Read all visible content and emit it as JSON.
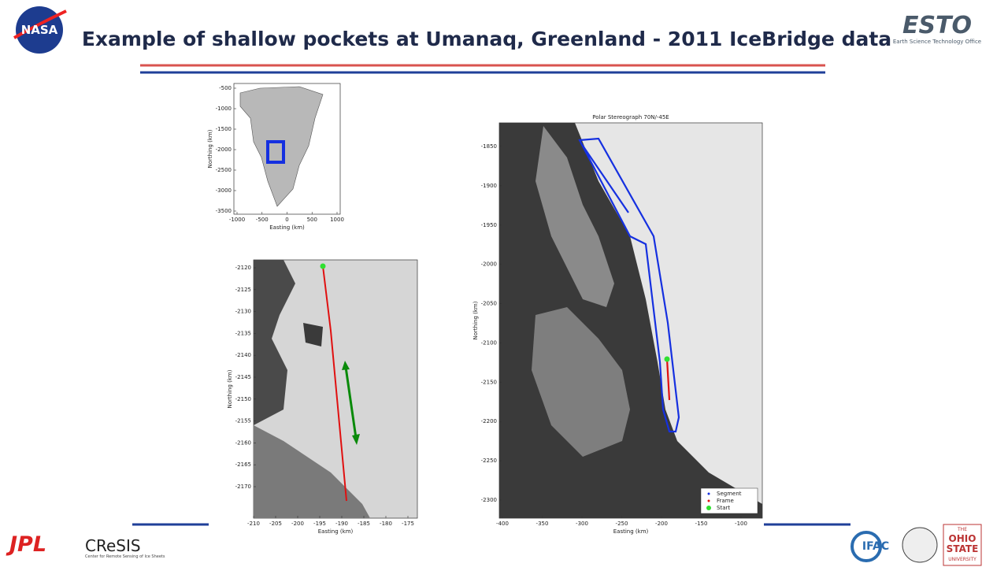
{
  "header": {
    "title": "Example of shallow pockets at Umanaq, Greenland - 2011 IceBridge data"
  },
  "logos": {
    "nasa": "NASA",
    "esto": "ESTO",
    "esto_sub": "Earth Science Technology Office",
    "jpl": "JPL",
    "cresis": "CReSIS",
    "cresis_sub": "Center for Remote Sensing of Ice Sheets",
    "ifac": "IFAC",
    "osu_1": "THE",
    "osu_2": "OHIO",
    "osu_3": "STATE",
    "osu_4": "UNIVERSITY"
  },
  "figures": [
    {
      "xlabel": "Easting (km)",
      "ylabel": "Northing (km)",
      "xticks": [
        -1000,
        -500,
        0,
        500,
        1000
      ],
      "yticks": [
        -500,
        -1000,
        -1500,
        -2000,
        -2500,
        -3000,
        -3500
      ]
    },
    {
      "xlabel": "Easting (km)",
      "ylabel": "Northing (km)",
      "xticks": [
        -210,
        -205,
        -200,
        -195,
        -190,
        -185,
        -180,
        -175
      ],
      "yticks": [
        -2120,
        -2125,
        -2130,
        -2135,
        -2140,
        -2145,
        -2150,
        -2155,
        -2160,
        -2165,
        -2170
      ]
    },
    {
      "title": "Polar Stereograph 70N/-45E",
      "xlabel": "Easting (km)",
      "ylabel": "Northing (km)",
      "xticks": [
        -400,
        -350,
        -300,
        -250,
        -200,
        -150,
        -100
      ],
      "yticks": [
        -1850,
        -1900,
        -1950,
        -2000,
        -2050,
        -2100,
        -2150,
        -2200,
        -2250,
        -2300
      ],
      "legend": [
        "Segment",
        "Frame",
        "Start"
      ]
    }
  ]
}
